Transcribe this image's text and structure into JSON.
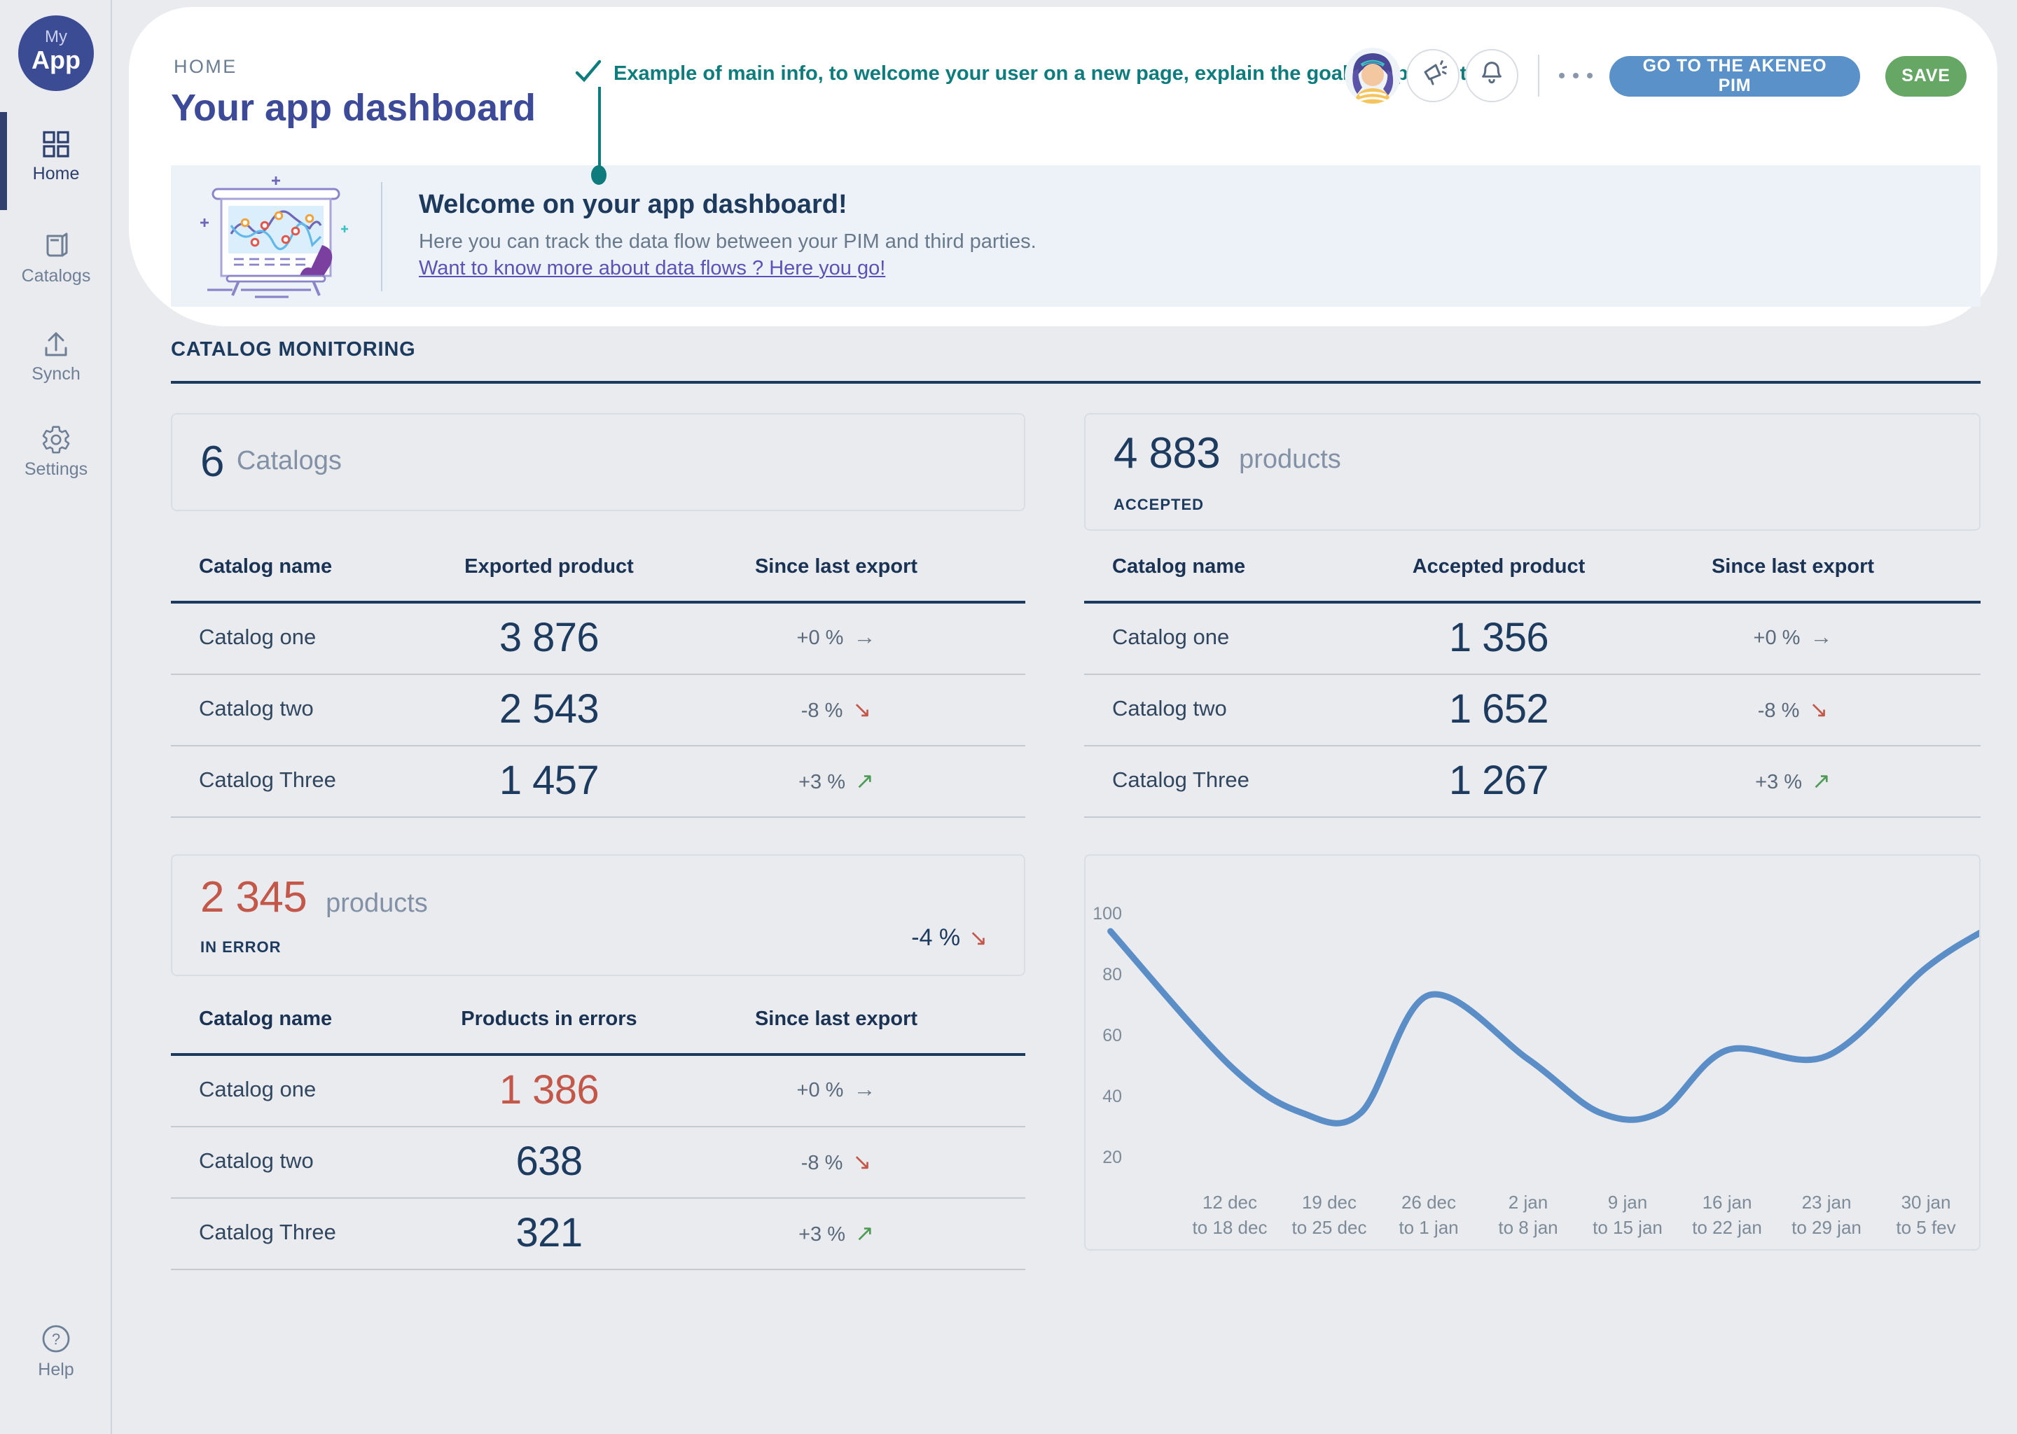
{
  "app": {
    "logo_top": "My",
    "logo_bottom": "App"
  },
  "sidebar": {
    "items": [
      {
        "label": "Home",
        "icon": "grid-icon",
        "active": true
      },
      {
        "label": "Catalogs",
        "icon": "book-icon",
        "active": false
      },
      {
        "label": "Synch",
        "icon": "upload-icon",
        "active": false
      },
      {
        "label": "Settings",
        "icon": "gear-icon",
        "active": false
      }
    ],
    "help_label": "Help"
  },
  "header": {
    "breadcrumb": "HOME",
    "title": "Your app dashboard",
    "annotation": "Example of main info, to welcome your user on a new page, explain the goal of a page etc.",
    "pim_button": "GO TO THE AKENEO PIM",
    "save_button": "SAVE"
  },
  "banner": {
    "title": "Welcome on your app dashboard!",
    "body": "Here you can track the data flow between your PIM and third parties.",
    "link": "Want to know more about data flows ? Here you go!"
  },
  "monitoring": {
    "section_title": "CATALOG MONITORING"
  },
  "catalogs_card": {
    "value": "6",
    "label": "Catalogs"
  },
  "accepted_card": {
    "value": "4 883",
    "label": "products",
    "sublabel": "ACCEPTED"
  },
  "error_card": {
    "value": "2 345",
    "label": "products",
    "sublabel": "IN ERROR",
    "pct": "-4 %",
    "trend": "down"
  },
  "exported_table": {
    "headers": [
      "Catalog name",
      "Exported product",
      "Since last export"
    ],
    "rows": [
      {
        "name": "Catalog one",
        "value": "3 876",
        "pct": "+0 %",
        "trend": "flat",
        "highlight": false
      },
      {
        "name": "Catalog two",
        "value": "2 543",
        "pct": "-8 %",
        "trend": "down",
        "highlight": false
      },
      {
        "name": "Catalog Three",
        "value": "1 457",
        "pct": "+3 %",
        "trend": "up",
        "highlight": false
      }
    ]
  },
  "accepted_table": {
    "headers": [
      "Catalog name",
      "Accepted product",
      "Since last export"
    ],
    "rows": [
      {
        "name": "Catalog one",
        "value": "1 356",
        "pct": "+0 %",
        "trend": "flat",
        "highlight": false
      },
      {
        "name": "Catalog two",
        "value": "1 652",
        "pct": "-8 %",
        "trend": "down",
        "highlight": false
      },
      {
        "name": "Catalog Three",
        "value": "1 267",
        "pct": "+3 %",
        "trend": "up",
        "highlight": false
      }
    ]
  },
  "error_table": {
    "headers": [
      "Catalog name",
      "Products in errors",
      "Since last export"
    ],
    "rows": [
      {
        "name": "Catalog one",
        "value": "1 386",
        "pct": "+0 %",
        "trend": "flat",
        "highlight": true
      },
      {
        "name": "Catalog two",
        "value": "638",
        "pct": "-8 %",
        "trend": "down",
        "highlight": false
      },
      {
        "name": "Catalog Three",
        "value": "321",
        "pct": "+3 %",
        "trend": "up",
        "highlight": false
      }
    ]
  },
  "chart_data": {
    "type": "line",
    "title": "",
    "xlabel": "",
    "ylabel": "",
    "ylim": [
      0,
      100
    ],
    "yticks": [
      100,
      80,
      60,
      40,
      20
    ],
    "grid": false,
    "legend": "none",
    "line_color": "#5b8ec6",
    "categories": [
      [
        "12 dec",
        "to 18 dec"
      ],
      [
        "19 dec",
        "to 25 dec"
      ],
      [
        "26 dec",
        "to 1 jan"
      ],
      [
        "2 jan",
        "to 8 jan"
      ],
      [
        "9 jan",
        "to 15 jan"
      ],
      [
        "16 jan",
        "to 22 jan"
      ],
      [
        "23 jan",
        "to 29 jan"
      ],
      [
        "30 jan",
        "to 5 fev"
      ]
    ],
    "values": [
      50,
      34.5,
      73,
      52,
      34.5,
      55,
      53,
      82
    ],
    "points": [
      {
        "i": -1.2,
        "v": 94
      },
      {
        "i": 0,
        "v": 50
      },
      {
        "i": 0.72,
        "v": 34.5
      },
      {
        "i": 1.32,
        "v": 34.5
      },
      {
        "i": 2,
        "v": 73
      },
      {
        "i": 3,
        "v": 52
      },
      {
        "i": 3.72,
        "v": 34.5
      },
      {
        "i": 4.32,
        "v": 34.5
      },
      {
        "i": 5,
        "v": 55
      },
      {
        "i": 6,
        "v": 53
      },
      {
        "i": 7,
        "v": 82
      },
      {
        "i": 7.62,
        "v": 95
      }
    ]
  },
  "colors": {
    "teal_accent": "#0e7c7c",
    "indigo_title": "#3c4a97",
    "navy": "#1c3a5e",
    "red": "#c2574a",
    "green": "#4d9b57",
    "blue_button": "#5991c8",
    "green_button": "#66a766",
    "chart_line": "#5b8ec6",
    "banner_bg": "#edf2f8",
    "page_bg": "#e9ebee"
  }
}
